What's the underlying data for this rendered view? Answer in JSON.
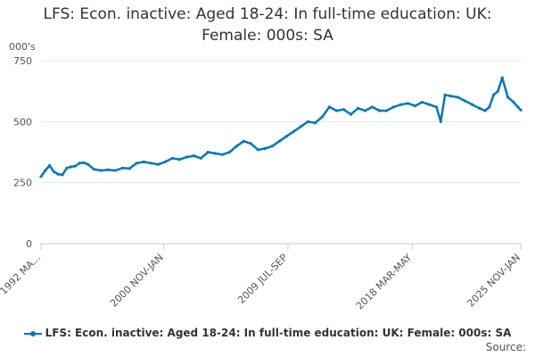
{
  "chart_data": {
    "type": "line",
    "title_lines": [
      "LFS: Econ. inactive: Aged 18-24: In full-time education: UK:",
      "Female: 000s: SA"
    ],
    "ylabel": "000's",
    "xlabel": "",
    "ylim": [
      0,
      750
    ],
    "yticks": [
      0,
      250,
      500,
      750
    ],
    "x_range": [
      "1992 MAR-MAY",
      "2025 NOV-JAN"
    ],
    "xtick_labels": [
      "1992 MA...",
      "2000 NOV-JAN",
      "2009 JUL-SEP",
      "2018 MAR-MAY",
      "2025 NOV-JAN"
    ],
    "xtick_years": [
      1992.3,
      2000.9,
      2009.6,
      2018.3,
      2025.9
    ],
    "grid": "horizontal",
    "legend_position": "bottom",
    "series": [
      {
        "name": "LFS: Econ. inactive: Aged 18-24: In full-time education: UK: Female: 000s: SA",
        "color": "#0077bb",
        "x": [
          1992.3,
          1992.6,
          1992.9,
          1993.2,
          1993.5,
          1993.8,
          1994.1,
          1994.4,
          1994.7,
          1995.0,
          1995.3,
          1995.6,
          1996.0,
          1996.5,
          1997.0,
          1997.5,
          1998.0,
          1998.5,
          1999.0,
          1999.5,
          2000.0,
          2000.5,
          2001.0,
          2001.5,
          2002.0,
          2002.5,
          2003.0,
          2003.5,
          2004.0,
          2004.5,
          2005.0,
          2005.5,
          2006.0,
          2006.5,
          2007.0,
          2007.5,
          2008.0,
          2008.5,
          2009.0,
          2009.5,
          2010.0,
          2010.5,
          2011.0,
          2011.5,
          2012.0,
          2012.5,
          2013.0,
          2013.5,
          2014.0,
          2014.5,
          2015.0,
          2015.5,
          2016.0,
          2016.5,
          2017.0,
          2017.5,
          2018.0,
          2018.5,
          2019.0,
          2019.5,
          2020.0,
          2020.3,
          2020.6,
          2021.0,
          2021.5,
          2022.0,
          2022.5,
          2023.0,
          2023.4,
          2023.7,
          2024.0,
          2024.3,
          2024.6,
          2025.0,
          2025.4,
          2025.7,
          2025.9
        ],
        "values": [
          275,
          300,
          320,
          295,
          285,
          282,
          310,
          315,
          318,
          330,
          332,
          325,
          305,
          300,
          303,
          300,
          310,
          308,
          330,
          335,
          330,
          325,
          335,
          350,
          345,
          355,
          360,
          350,
          375,
          370,
          365,
          375,
          400,
          420,
          410,
          385,
          390,
          400,
          420,
          440,
          460,
          480,
          500,
          495,
          520,
          560,
          545,
          550,
          530,
          555,
          545,
          560,
          545,
          545,
          560,
          570,
          575,
          565,
          580,
          570,
          560,
          500,
          610,
          605,
          600,
          585,
          570,
          555,
          545,
          560,
          610,
          625,
          680,
          600,
          580,
          560,
          548
        ]
      }
    ]
  },
  "source_label": "Source:"
}
